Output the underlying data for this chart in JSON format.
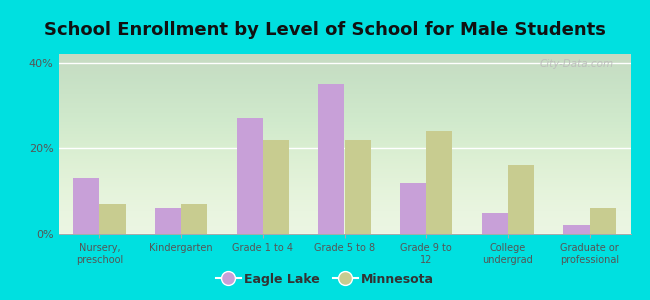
{
  "title": "School Enrollment by Level of School for Male Students",
  "categories": [
    "Nursery,\npreschool",
    "Kindergarten",
    "Grade 1 to 4",
    "Grade 5 to 8",
    "Grade 9 to\n12",
    "College\nundergrad",
    "Graduate or\nprofessional"
  ],
  "eagle_lake": [
    13.0,
    6.0,
    27.0,
    35.0,
    12.0,
    5.0,
    2.0
  ],
  "minnesota": [
    7.0,
    7.0,
    22.0,
    22.0,
    24.0,
    16.0,
    6.0
  ],
  "eagle_lake_color": "#c8a0d8",
  "minnesota_color": "#c8cc90",
  "background_color": "#00e0e0",
  "plot_bg": "#eaf5e0",
  "ylim": [
    0,
    42
  ],
  "yticks": [
    0,
    20,
    40
  ],
  "ytick_labels": [
    "0%",
    "20%",
    "40%"
  ],
  "legend_eagle_lake": "Eagle Lake",
  "legend_minnesota": "Minnesota",
  "title_fontsize": 13,
  "bar_width": 0.32,
  "watermark": "City-Data.com"
}
